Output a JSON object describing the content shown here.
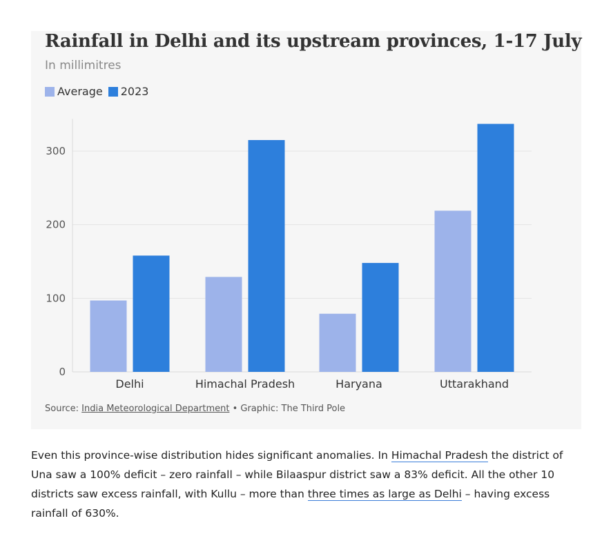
{
  "chart_data": {
    "type": "bar",
    "title": "Rainfall in Delhi and its upstream provinces, 1-17 July",
    "subtitle": "In millimitres",
    "categories": [
      "Delhi",
      "Himachal Pradesh",
      "Haryana",
      "Uttarakhand"
    ],
    "series": [
      {
        "name": "Average",
        "values": [
          97,
          129,
          79,
          219
        ],
        "color": "#9db3ea"
      },
      {
        "name": "2023",
        "values": [
          158,
          315,
          148,
          337
        ],
        "color": "#2d7fdc"
      }
    ],
    "ylim": [
      0,
      340
    ],
    "yticks": [
      0,
      100,
      200,
      300
    ],
    "xlabel": "",
    "ylabel": "",
    "grid": true,
    "legend": "top-left"
  },
  "source": {
    "prefix": "Source: ",
    "link_text": "India Meteorological Department",
    "suffix": " • Graphic: The Third Pole"
  },
  "paragraph": {
    "t1": "Even this province-wise distribution hides significant anomalies. In ",
    "link1": "Himachal Pradesh",
    "t2": " the district of Una saw a 100% deficit – zero rainfall – while Bilaaspur district saw a 83% deficit. All the other 10 districts saw excess rainfall, with Kullu – more than ",
    "link2": "three times as large as Delhi",
    "t3": " – having excess rainfall of 630%."
  }
}
